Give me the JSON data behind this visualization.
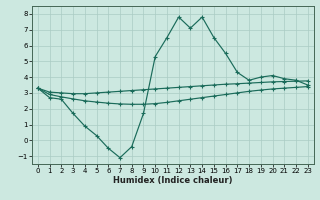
{
  "xlabel": "Humidex (Indice chaleur)",
  "background_color": "#cce8e0",
  "grid_color": "#aaccc4",
  "line_color": "#1a6b5a",
  "xlim": [
    -0.5,
    23.5
  ],
  "ylim": [
    -1.5,
    8.5
  ],
  "xticks": [
    0,
    1,
    2,
    3,
    4,
    5,
    6,
    7,
    8,
    9,
    10,
    11,
    12,
    13,
    14,
    15,
    16,
    17,
    18,
    19,
    20,
    21,
    22,
    23
  ],
  "yticks": [
    -1,
    0,
    1,
    2,
    3,
    4,
    5,
    6,
    7,
    8
  ],
  "x": [
    0,
    1,
    2,
    3,
    4,
    5,
    6,
    7,
    8,
    9,
    10,
    11,
    12,
    13,
    14,
    15,
    16,
    17,
    18,
    19,
    20,
    21,
    22,
    23
  ],
  "y_upper": [
    3.3,
    2.7,
    2.6,
    1.7,
    0.9,
    0.3,
    -0.5,
    -1.1,
    -0.4,
    1.7,
    5.3,
    6.5,
    7.8,
    7.1,
    7.8,
    6.5,
    5.5,
    4.3,
    3.8,
    4.0,
    4.1,
    3.9,
    3.8,
    3.5
  ],
  "y_middle": [
    3.3,
    3.05,
    3.0,
    2.95,
    2.95,
    3.0,
    3.05,
    3.1,
    3.15,
    3.2,
    3.25,
    3.3,
    3.35,
    3.4,
    3.45,
    3.5,
    3.55,
    3.58,
    3.62,
    3.66,
    3.7,
    3.72,
    3.74,
    3.76
  ],
  "y_lower": [
    3.3,
    2.9,
    2.75,
    2.62,
    2.5,
    2.42,
    2.35,
    2.3,
    2.28,
    2.28,
    2.32,
    2.4,
    2.5,
    2.6,
    2.7,
    2.8,
    2.9,
    3.0,
    3.1,
    3.18,
    3.25,
    3.3,
    3.35,
    3.4
  ]
}
